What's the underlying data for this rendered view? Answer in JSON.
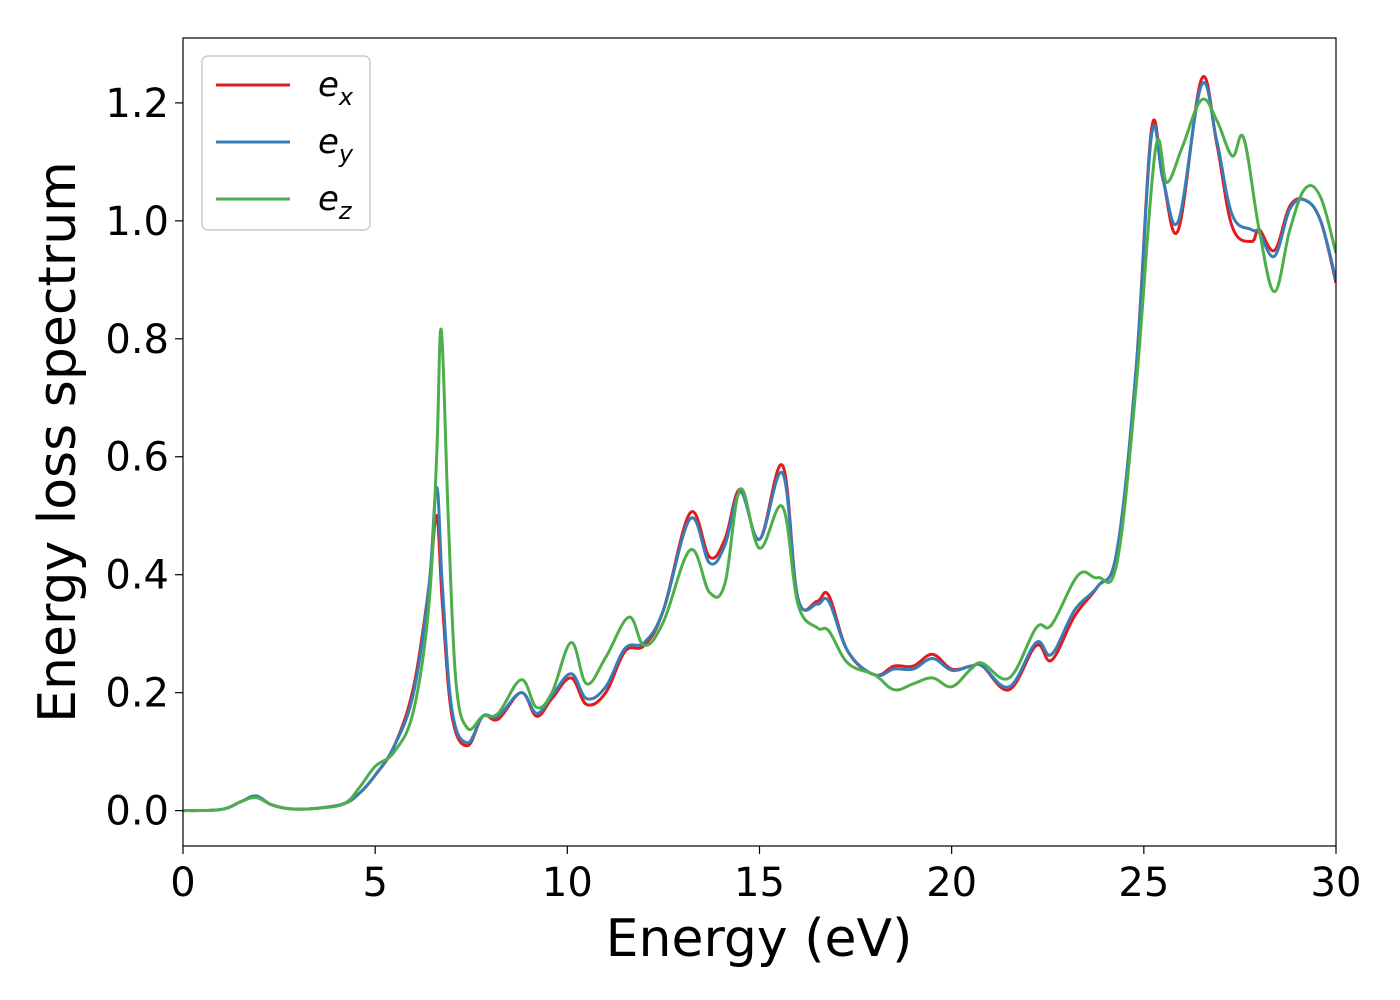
{
  "chart_data": {
    "type": "line",
    "xlabel": "Energy (eV)",
    "ylabel": "Energy loss spectrum",
    "xlim": [
      0,
      30
    ],
    "ylim": [
      -0.06,
      1.31
    ],
    "xticks": [
      0,
      5,
      10,
      15,
      20,
      25,
      30
    ],
    "xtick_labels": [
      "0",
      "5",
      "10",
      "15",
      "20",
      "25",
      "30"
    ],
    "yticks": [
      0.0,
      0.2,
      0.4,
      0.6,
      0.8,
      1.0,
      1.2
    ],
    "ytick_labels": [
      "0.0",
      "0.2",
      "0.4",
      "0.6",
      "0.8",
      "1.0",
      "1.2"
    ],
    "grid": false,
    "legend_position": "top-left",
    "series": [
      {
        "name": "e_x",
        "legend_base": "e",
        "legend_sub": "x",
        "color": "#e41a1c",
        "points": [
          [
            0,
            0.0
          ],
          [
            1.0,
            0.002
          ],
          [
            1.5,
            0.015
          ],
          [
            1.9,
            0.024
          ],
          [
            2.3,
            0.01
          ],
          [
            2.8,
            0.003
          ],
          [
            3.5,
            0.004
          ],
          [
            4.2,
            0.012
          ],
          [
            4.6,
            0.03
          ],
          [
            5.0,
            0.06
          ],
          [
            5.5,
            0.11
          ],
          [
            6.0,
            0.21
          ],
          [
            6.4,
            0.38
          ],
          [
            6.6,
            0.5
          ],
          [
            6.75,
            0.35
          ],
          [
            7.0,
            0.16
          ],
          [
            7.4,
            0.11
          ],
          [
            7.8,
            0.16
          ],
          [
            8.2,
            0.155
          ],
          [
            8.8,
            0.2
          ],
          [
            9.2,
            0.16
          ],
          [
            9.6,
            0.19
          ],
          [
            10.1,
            0.225
          ],
          [
            10.5,
            0.18
          ],
          [
            11.0,
            0.2
          ],
          [
            11.5,
            0.27
          ],
          [
            12.0,
            0.28
          ],
          [
            12.5,
            0.34
          ],
          [
            13.2,
            0.505
          ],
          [
            13.7,
            0.43
          ],
          [
            14.1,
            0.46
          ],
          [
            14.5,
            0.545
          ],
          [
            15.0,
            0.46
          ],
          [
            15.6,
            0.585
          ],
          [
            16.0,
            0.36
          ],
          [
            16.5,
            0.355
          ],
          [
            16.8,
            0.365
          ],
          [
            17.3,
            0.27
          ],
          [
            18.0,
            0.23
          ],
          [
            18.5,
            0.245
          ],
          [
            19.0,
            0.245
          ],
          [
            19.5,
            0.265
          ],
          [
            20.0,
            0.24
          ],
          [
            20.5,
            0.245
          ],
          [
            20.8,
            0.245
          ],
          [
            21.5,
            0.205
          ],
          [
            22.2,
            0.28
          ],
          [
            22.6,
            0.255
          ],
          [
            23.2,
            0.33
          ],
          [
            23.8,
            0.38
          ],
          [
            24.3,
            0.44
          ],
          [
            24.8,
            0.75
          ],
          [
            25.2,
            1.155
          ],
          [
            25.5,
            1.07
          ],
          [
            25.9,
            0.985
          ],
          [
            26.5,
            1.24
          ],
          [
            26.9,
            1.13
          ],
          [
            27.3,
            0.99
          ],
          [
            27.8,
            0.965
          ],
          [
            28.0,
            0.985
          ],
          [
            28.4,
            0.95
          ],
          [
            28.8,
            1.025
          ],
          [
            29.2,
            1.035
          ],
          [
            29.6,
            1.0
          ],
          [
            30.0,
            0.895
          ]
        ]
      },
      {
        "name": "e_y",
        "legend_base": "e",
        "legend_sub": "y",
        "color": "#377eb8",
        "points": [
          [
            0,
            0.0
          ],
          [
            1.0,
            0.002
          ],
          [
            1.5,
            0.015
          ],
          [
            1.9,
            0.025
          ],
          [
            2.3,
            0.01
          ],
          [
            2.8,
            0.003
          ],
          [
            3.5,
            0.004
          ],
          [
            4.2,
            0.012
          ],
          [
            4.6,
            0.03
          ],
          [
            5.0,
            0.06
          ],
          [
            5.5,
            0.11
          ],
          [
            6.0,
            0.2
          ],
          [
            6.4,
            0.38
          ],
          [
            6.6,
            0.548
          ],
          [
            6.75,
            0.38
          ],
          [
            7.0,
            0.17
          ],
          [
            7.4,
            0.115
          ],
          [
            7.8,
            0.16
          ],
          [
            8.2,
            0.16
          ],
          [
            8.8,
            0.2
          ],
          [
            9.2,
            0.165
          ],
          [
            9.6,
            0.195
          ],
          [
            10.1,
            0.232
          ],
          [
            10.5,
            0.19
          ],
          [
            11.0,
            0.21
          ],
          [
            11.5,
            0.275
          ],
          [
            12.0,
            0.285
          ],
          [
            12.5,
            0.34
          ],
          [
            13.2,
            0.495
          ],
          [
            13.7,
            0.42
          ],
          [
            14.1,
            0.45
          ],
          [
            14.5,
            0.54
          ],
          [
            15.0,
            0.46
          ],
          [
            15.6,
            0.572
          ],
          [
            16.0,
            0.36
          ],
          [
            16.5,
            0.35
          ],
          [
            16.8,
            0.355
          ],
          [
            17.3,
            0.27
          ],
          [
            18.0,
            0.23
          ],
          [
            18.5,
            0.24
          ],
          [
            19.0,
            0.24
          ],
          [
            19.5,
            0.258
          ],
          [
            20.0,
            0.238
          ],
          [
            20.5,
            0.245
          ],
          [
            20.8,
            0.245
          ],
          [
            21.5,
            0.21
          ],
          [
            22.2,
            0.285
          ],
          [
            22.6,
            0.265
          ],
          [
            23.2,
            0.34
          ],
          [
            23.8,
            0.38
          ],
          [
            24.3,
            0.44
          ],
          [
            24.8,
            0.75
          ],
          [
            25.2,
            1.145
          ],
          [
            25.5,
            1.07
          ],
          [
            25.9,
            1.0
          ],
          [
            26.5,
            1.23
          ],
          [
            26.9,
            1.135
          ],
          [
            27.3,
            1.01
          ],
          [
            27.8,
            0.985
          ],
          [
            28.0,
            0.98
          ],
          [
            28.4,
            0.94
          ],
          [
            28.8,
            1.02
          ],
          [
            29.2,
            1.035
          ],
          [
            29.6,
            1.0
          ],
          [
            30.0,
            0.9
          ]
        ]
      },
      {
        "name": "e_z",
        "legend_base": "e",
        "legend_sub": "z",
        "color": "#4daf4a",
        "points": [
          [
            0,
            0.0
          ],
          [
            1.0,
            0.002
          ],
          [
            1.5,
            0.015
          ],
          [
            1.9,
            0.022
          ],
          [
            2.3,
            0.01
          ],
          [
            2.8,
            0.003
          ],
          [
            3.5,
            0.004
          ],
          [
            4.2,
            0.012
          ],
          [
            4.6,
            0.04
          ],
          [
            5.0,
            0.075
          ],
          [
            5.5,
            0.1
          ],
          [
            6.0,
            0.17
          ],
          [
            6.4,
            0.35
          ],
          [
            6.6,
            0.6
          ],
          [
            6.72,
            0.815
          ],
          [
            6.9,
            0.5
          ],
          [
            7.1,
            0.22
          ],
          [
            7.4,
            0.14
          ],
          [
            7.8,
            0.16
          ],
          [
            8.2,
            0.165
          ],
          [
            8.8,
            0.222
          ],
          [
            9.2,
            0.175
          ],
          [
            9.6,
            0.2
          ],
          [
            10.1,
            0.285
          ],
          [
            10.5,
            0.215
          ],
          [
            11.0,
            0.26
          ],
          [
            11.6,
            0.328
          ],
          [
            12.0,
            0.28
          ],
          [
            12.5,
            0.32
          ],
          [
            13.2,
            0.442
          ],
          [
            13.7,
            0.37
          ],
          [
            14.1,
            0.385
          ],
          [
            14.5,
            0.545
          ],
          [
            15.0,
            0.445
          ],
          [
            15.6,
            0.515
          ],
          [
            16.0,
            0.35
          ],
          [
            16.5,
            0.31
          ],
          [
            16.8,
            0.305
          ],
          [
            17.3,
            0.25
          ],
          [
            18.0,
            0.23
          ],
          [
            18.5,
            0.205
          ],
          [
            19.0,
            0.215
          ],
          [
            19.5,
            0.225
          ],
          [
            20.0,
            0.21
          ],
          [
            20.5,
            0.24
          ],
          [
            20.8,
            0.25
          ],
          [
            21.5,
            0.225
          ],
          [
            22.2,
            0.31
          ],
          [
            22.6,
            0.315
          ],
          [
            23.3,
            0.4
          ],
          [
            23.8,
            0.395
          ],
          [
            24.3,
            0.42
          ],
          [
            24.8,
            0.72
          ],
          [
            25.3,
            1.12
          ],
          [
            25.6,
            1.065
          ],
          [
            26.0,
            1.125
          ],
          [
            26.5,
            1.205
          ],
          [
            26.9,
            1.17
          ],
          [
            27.3,
            1.11
          ],
          [
            27.6,
            1.14
          ],
          [
            28.0,
            0.985
          ],
          [
            28.4,
            0.88
          ],
          [
            28.8,
            0.985
          ],
          [
            29.2,
            1.055
          ],
          [
            29.6,
            1.04
          ],
          [
            30.0,
            0.945
          ]
        ]
      }
    ]
  }
}
